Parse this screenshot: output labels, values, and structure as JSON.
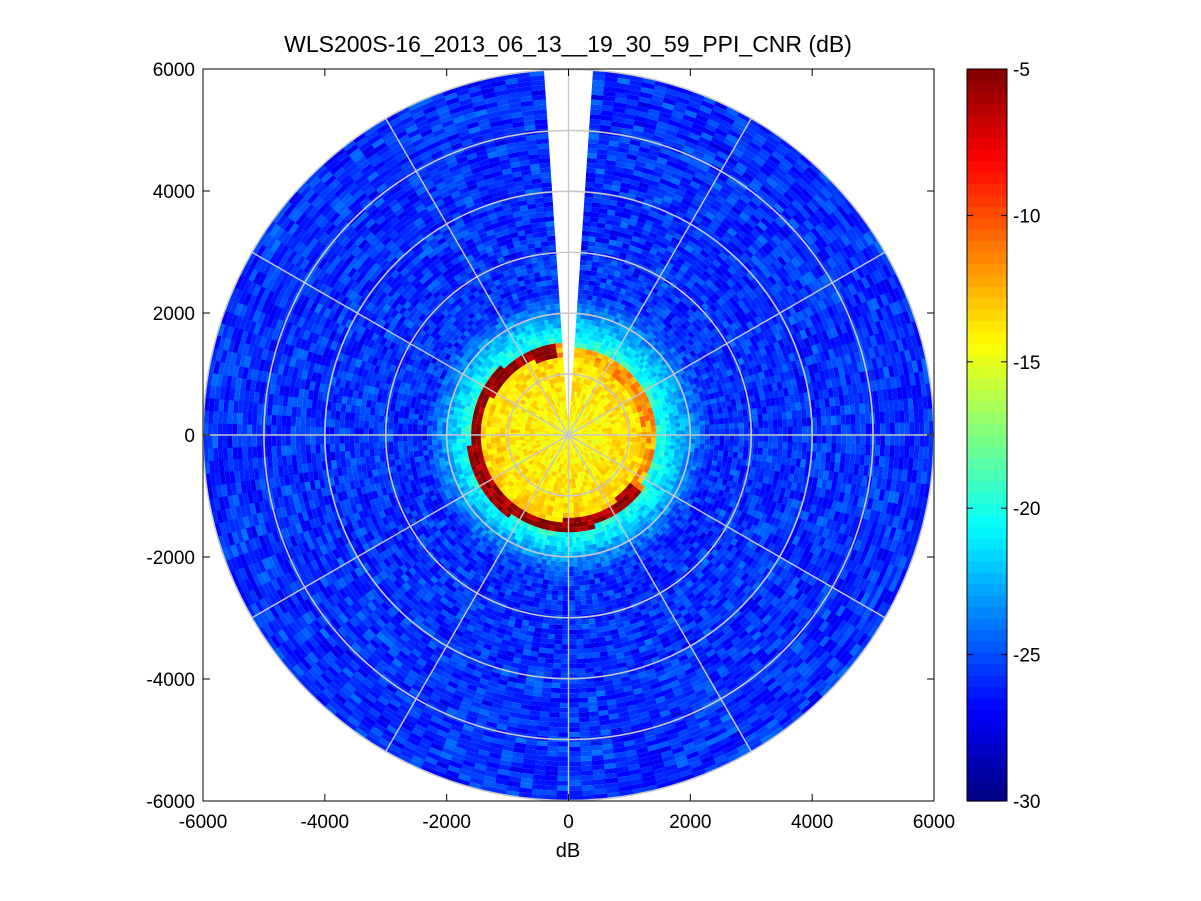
{
  "chart_data": {
    "type": "heatmap",
    "subtype": "polar-ppi",
    "title": "WLS200S-16_2013_06_13__19_30_59_PPI_CNR (dB)",
    "xlabel": "dB",
    "ylabel": "",
    "xlim": [
      -6000,
      6000
    ],
    "ylim": [
      -6000,
      6000
    ],
    "x_ticks": [
      "-6000",
      "-4000",
      "-2000",
      "0",
      "2000",
      "4000",
      "6000"
    ],
    "y_ticks": [
      "6000",
      "4000",
      "2000",
      "0",
      "-2000",
      "-4000",
      "-6000"
    ],
    "max_range": 6000,
    "range_rings": [
      1000,
      2000,
      3000,
      4000,
      5000,
      6000
    ],
    "spoke_angles_deg": [
      0,
      30,
      60,
      90,
      120,
      150,
      180,
      210,
      240,
      270,
      300,
      330
    ],
    "blind_sector_deg": [
      -4,
      4
    ],
    "grid": true,
    "colorbar": {
      "colormap": "jet",
      "clim": [
        -30,
        -5
      ],
      "ticks": [
        "-5",
        "-10",
        "-15",
        "-20",
        "-25",
        "-30"
      ],
      "placement": "right"
    },
    "field_summary": [
      {
        "region": "near field (0 - 1500 m)",
        "value_db": -15
      },
      {
        "region": "near-field edge ring (~1300 - 1600 m, west/south)",
        "value_db": -6
      },
      {
        "region": "transition (1500 - 2200 m)",
        "value_db": -21
      },
      {
        "region": "far field (2200 - 6000 m)",
        "value_db": -26
      }
    ]
  }
}
